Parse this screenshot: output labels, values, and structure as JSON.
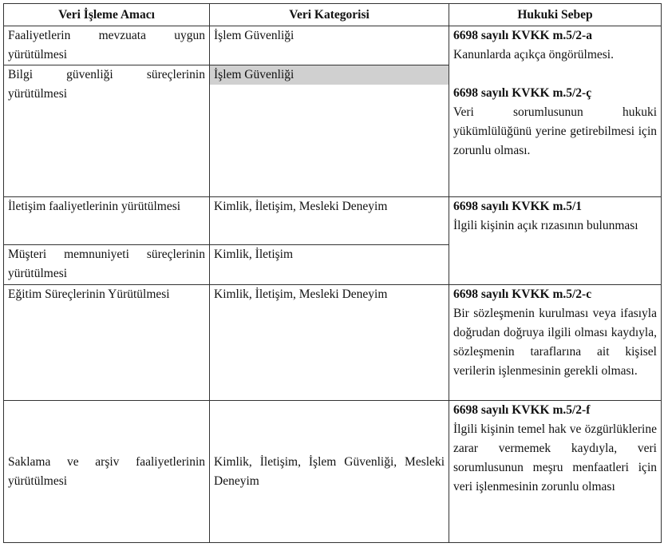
{
  "headers": [
    "Veri İşleme Amacı",
    "Veri Kategorisi",
    "Hukuki Sebep"
  ],
  "rows": [
    {
      "purpose": "Faaliyetlerin mevzuata uygun yürütülmesi",
      "category": "İşlem Güvenliği"
    },
    {
      "purpose": "Bilgi güvenliği süreçlerinin yürütülmesi",
      "category": "İşlem Güvenliği"
    },
    {
      "purpose": "İletişim faaliyetlerinin yürütülmesi",
      "category": "Kimlik, İletişim, Mesleki Deneyim"
    },
    {
      "purpose": "Müşteri memnuniyeti süreçlerinin yürütülmesi",
      "category": "Kimlik, İletişim"
    },
    {
      "purpose": "Eğitim Süreçlerinin Yürütülmesi",
      "category": "Kimlik, İletişim, Mesleki Deneyim"
    },
    {
      "purpose": "Saklama ve arşiv faaliyetlerinin yürütülmesi",
      "category": "Kimlik, İletişim, İşlem Güvenliği, Mesleki Deneyim"
    }
  ],
  "legal": {
    "a_title": "6698 sayılı KVKK m.5/2-a",
    "a_text": "Kanunlarda açıkça öngörülmesi.",
    "c_cedilla_title": "6698 sayılı KVKK m.5/2-ç",
    "c_cedilla_text": "Veri sorumlusunun hukuki yükümlülüğünü yerine getirebilmesi için zorunlu olması.",
    "consent_title": "6698 sayılı KVKK m.5/1",
    "consent_text": "İlgili kişinin açık rızasının bulunması",
    "c_title": "6698 sayılı KVKK m.5/2-c",
    "c_text": "Bir sözleşmenin kurulması veya ifasıyla doğrudan doğruya ilgili olması kaydıyla, sözleşmenin taraflarına ait kişisel verilerin işlenmesinin gerekli olması.",
    "f_title": "6698 sayılı KVKK m.5/2-f",
    "f_text": "İlgili kişinin temel hak ve özgürlüklerine zarar vermemek kaydıyla, veri sorumlusunun meşru menfaatleri için veri işlenmesinin zorunlu olması"
  },
  "highlight_color": "#d0d0d0"
}
